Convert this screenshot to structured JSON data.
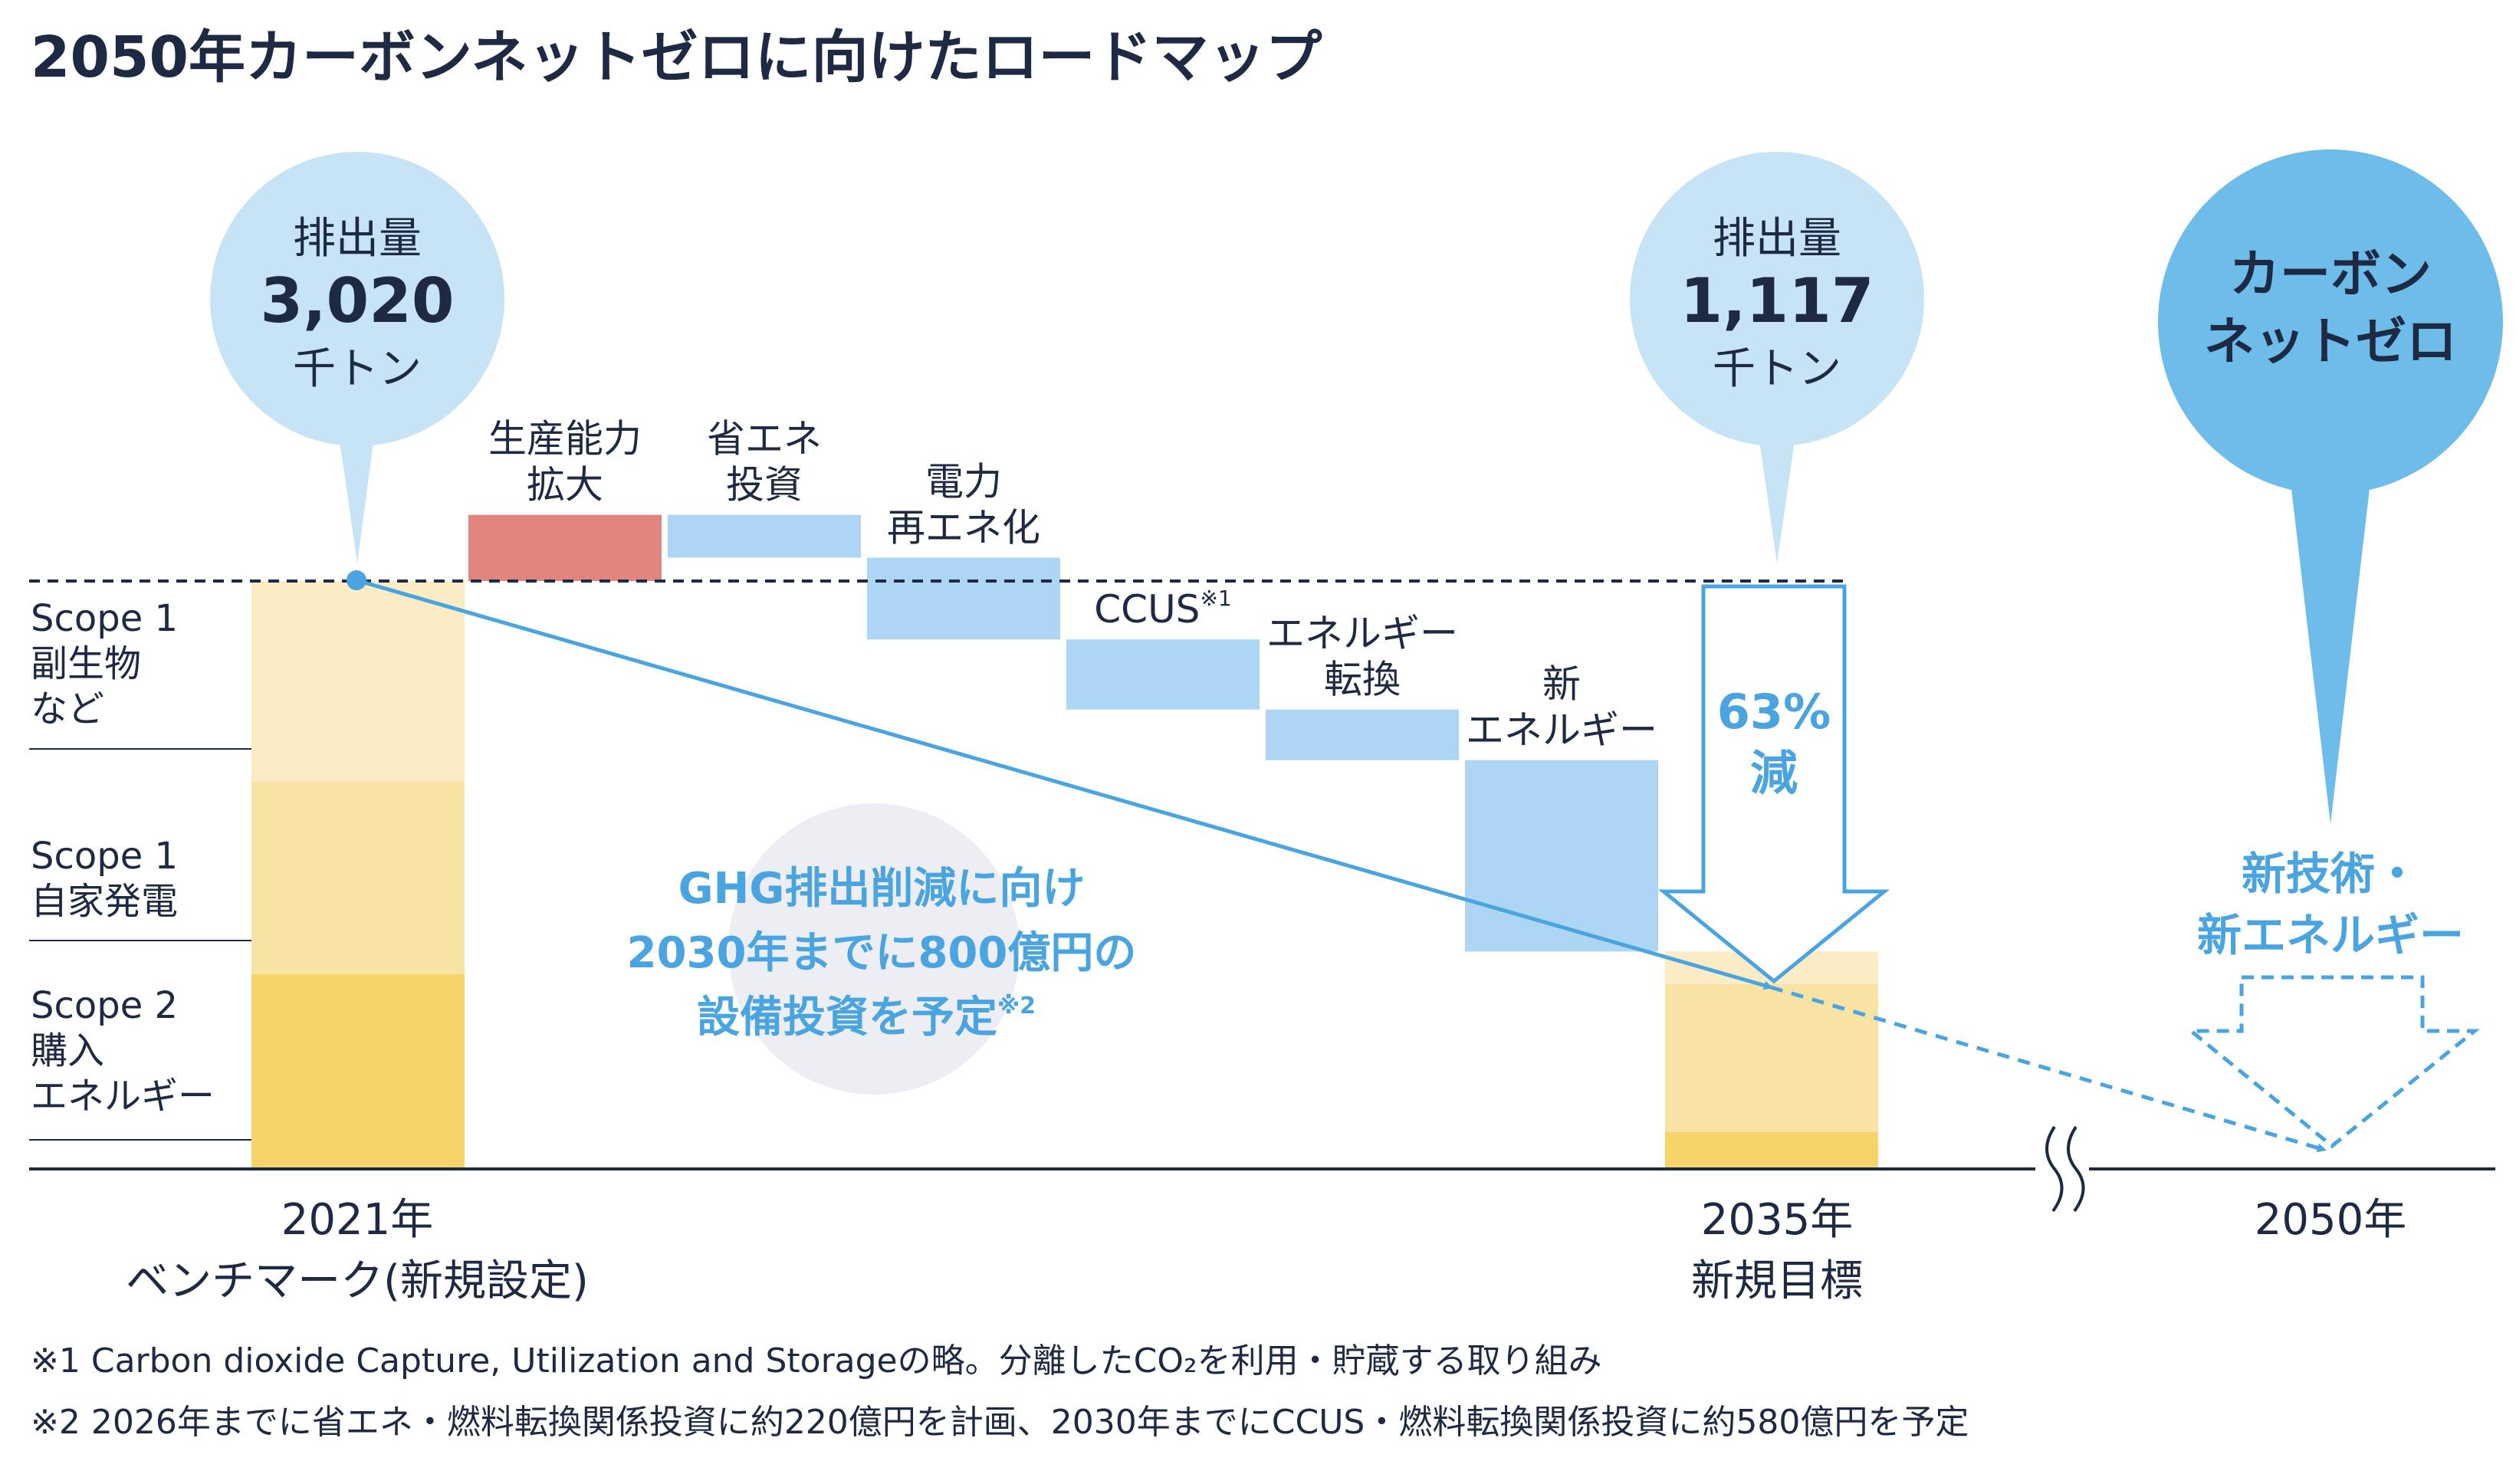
{
  "chart_data": {
    "type": "bar",
    "title": "2050年カーボンネットゼロに向けたロードマップ",
    "unit": "千トン",
    "ylim": [
      0,
      3020
    ],
    "benchmark": {
      "x_line1": "2021年",
      "x_line2": "ベンチマーク(新規設定)",
      "bubble_label": "排出量",
      "bubble_value": "3,020",
      "bubble_unit": "千トン",
      "total": 3020,
      "segments": [
        {
          "name": "Scope 2 購入エネルギー",
          "value": 1000,
          "color": "#f6d46a"
        },
        {
          "name": "Scope 1 自家発電",
          "value": 990,
          "color": "#f9e3a4"
        },
        {
          "name": "Scope 1 副生物など",
          "value": 1030,
          "color": "#fbecc5"
        }
      ]
    },
    "scope_labels": [
      [
        "Scope 1",
        "副生物",
        "など"
      ],
      [
        "Scope 1",
        "自家発電"
      ],
      [
        "Scope 2",
        "購入",
        "エネルギー"
      ]
    ],
    "steps": [
      {
        "lines": [
          "生産能力",
          "拡大"
        ],
        "delta": 340,
        "color": "#e1867f"
      },
      {
        "lines": [
          "省エネ",
          "投資"
        ],
        "delta": -220,
        "color": "#acd6f3"
      },
      {
        "lines": [
          "電力",
          "再エネ化"
        ],
        "delta": -420,
        "color": "#acd6f3"
      },
      {
        "lines": [
          "CCUS"
        ],
        "sup": "※1",
        "delta": -360,
        "color": "#acd6f3"
      },
      {
        "lines": [
          "エネルギー",
          "転換"
        ],
        "delta": -260,
        "color": "#acd6f3"
      },
      {
        "lines": [
          "新",
          "エネルギー"
        ],
        "delta": -983,
        "color": "#acd6f3"
      }
    ],
    "target2035": {
      "x_line1": "2035年",
      "x_line2": "新規目標",
      "bubble_label": "排出量",
      "bubble_value": "1,117",
      "bubble_unit": "千トン",
      "total": 1117,
      "segments": [
        {
          "value": 190,
          "color": "#f6d46a"
        },
        {
          "value": 760,
          "color": "#f9e3a4"
        },
        {
          "value": 167,
          "color": "#fbecc5"
        }
      ],
      "reduction_line1": "63%",
      "reduction_line2": "減"
    },
    "target2050": {
      "x_label": "2050年",
      "bubble_line1": "カーボン",
      "bubble_line2": "ネットゼロ",
      "method_line1": "新技術・",
      "method_line2": "新エネルギー",
      "total": 0
    },
    "investment": {
      "line1": "GHG排出削減に向け",
      "line2": "2030年までに800億円の",
      "line3": "設備投資を予定",
      "sup": "※2"
    },
    "footnotes": [
      "※1 Carbon dioxide Capture, Utilization and Storageの略。分離したCO₂を利用・貯蔵する取り組み",
      "※2 2026年までに省エネ・燃料転換関係投資に約220億円を計画、2030年までにCCUS・燃料転換関係投資に約580億円を予定"
    ],
    "colors": {
      "title": "#1e2a44",
      "accent_blue": "#4aa4e0",
      "bubble_light": "#c7e4f7",
      "bubble_dark": "#6dbce9",
      "axis": "#1e2a44",
      "gray_circle": "#eceef3"
    }
  }
}
